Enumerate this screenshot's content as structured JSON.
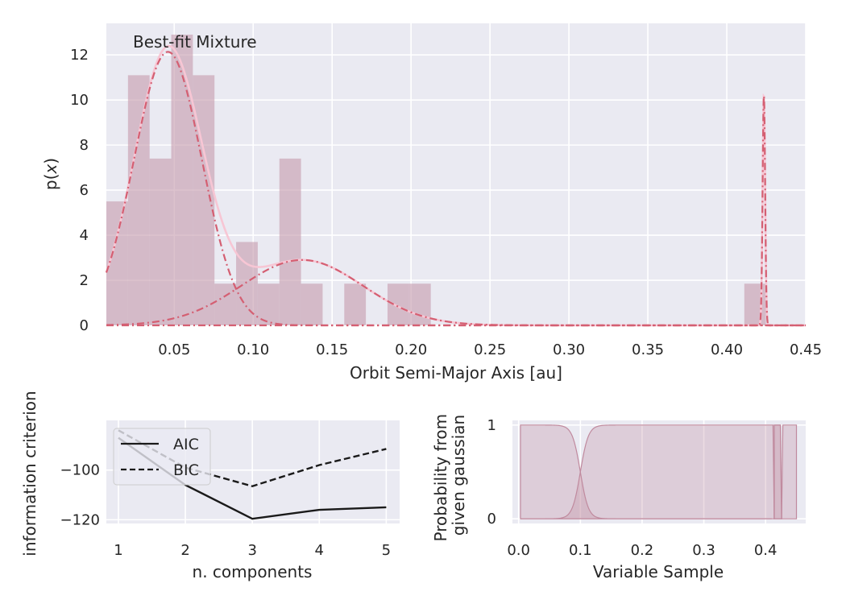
{
  "chart_data": [
    {
      "type": "histogram+line",
      "annotation": "Best-fit Mixture",
      "xlabel": "Orbit Semi-Major Axis [au]",
      "ylabel_main": "p(",
      "ylabel_var": "x",
      "ylabel_end": ")",
      "xlim": [
        0.007,
        0.45
      ],
      "ylim": [
        0,
        13.4
      ],
      "xticks": [
        "0.05",
        "0.10",
        "0.15",
        "0.20",
        "0.25",
        "0.30",
        "0.35",
        "0.40",
        "0.45"
      ],
      "yticks": [
        "0",
        "2",
        "4",
        "6",
        "8",
        "10",
        "12"
      ],
      "histogram": {
        "color": "#c59aab",
        "bin_width": 0.0137,
        "bins": [
          {
            "x0": 0.007,
            "h": 5.5
          },
          {
            "x0": 0.0207,
            "h": 11.1
          },
          {
            "x0": 0.0344,
            "h": 7.4
          },
          {
            "x0": 0.0481,
            "h": 12.9
          },
          {
            "x0": 0.0618,
            "h": 11.1
          },
          {
            "x0": 0.0755,
            "h": 1.85
          },
          {
            "x0": 0.0892,
            "h": 3.7
          },
          {
            "x0": 0.1029,
            "h": 1.85
          },
          {
            "x0": 0.1166,
            "h": 7.4
          },
          {
            "x0": 0.1303,
            "h": 1.85
          },
          {
            "x0": 0.1577,
            "h": 1.85
          },
          {
            "x0": 0.1851,
            "h": 1.85
          },
          {
            "x0": 0.1988,
            "h": 1.85
          },
          {
            "x0": 0.4111,
            "h": 1.85
          }
        ]
      },
      "components": [
        {
          "mu": 0.046,
          "sigma": 0.0215,
          "weight": 0.654,
          "color": "#d45f72"
        },
        {
          "mu": 0.131,
          "sigma": 0.0385,
          "weight": 0.28,
          "color": "#d45f72"
        },
        {
          "mu": 0.4235,
          "sigma": 0.0008,
          "weight": 0.0205,
          "color": "#d45f72"
        }
      ],
      "total_color": "#f7c6d4"
    },
    {
      "type": "line",
      "xlabel": "n. components",
      "ylabel": "information criterion",
      "x": [
        1,
        2,
        3,
        4,
        5
      ],
      "xlim": [
        0.82,
        5.2
      ],
      "ylim": [
        -121.5,
        -80
      ],
      "xticks": [
        "1",
        "2",
        "3",
        "4",
        "5"
      ],
      "yticks": [
        {
          "value": -100,
          "label": "−100"
        },
        {
          "value": -120,
          "label": "−120"
        }
      ],
      "series": [
        {
          "name": "AIC",
          "values": [
            -87,
            -106,
            -119.6,
            -116,
            -115
          ],
          "style": "solid",
          "color": "#1a1a1a"
        },
        {
          "name": "BIC",
          "values": [
            -84,
            -99,
            -106.5,
            -98,
            -91.5
          ],
          "style": "dashed",
          "color": "#1a1a1a"
        }
      ],
      "legend": "top-left"
    },
    {
      "type": "area",
      "xlabel": "Variable Sample",
      "ylabel_line1": "Probability from",
      "ylabel_line2": "given gaussian",
      "xlim": [
        -0.01,
        0.465
      ],
      "ylim": [
        -0.05,
        1.05
      ],
      "xticks": [
        "0.0",
        "0.1",
        "0.2",
        "0.3",
        "0.4"
      ],
      "yticks": [
        "0",
        "1"
      ],
      "color": "#c08a9e"
    }
  ]
}
